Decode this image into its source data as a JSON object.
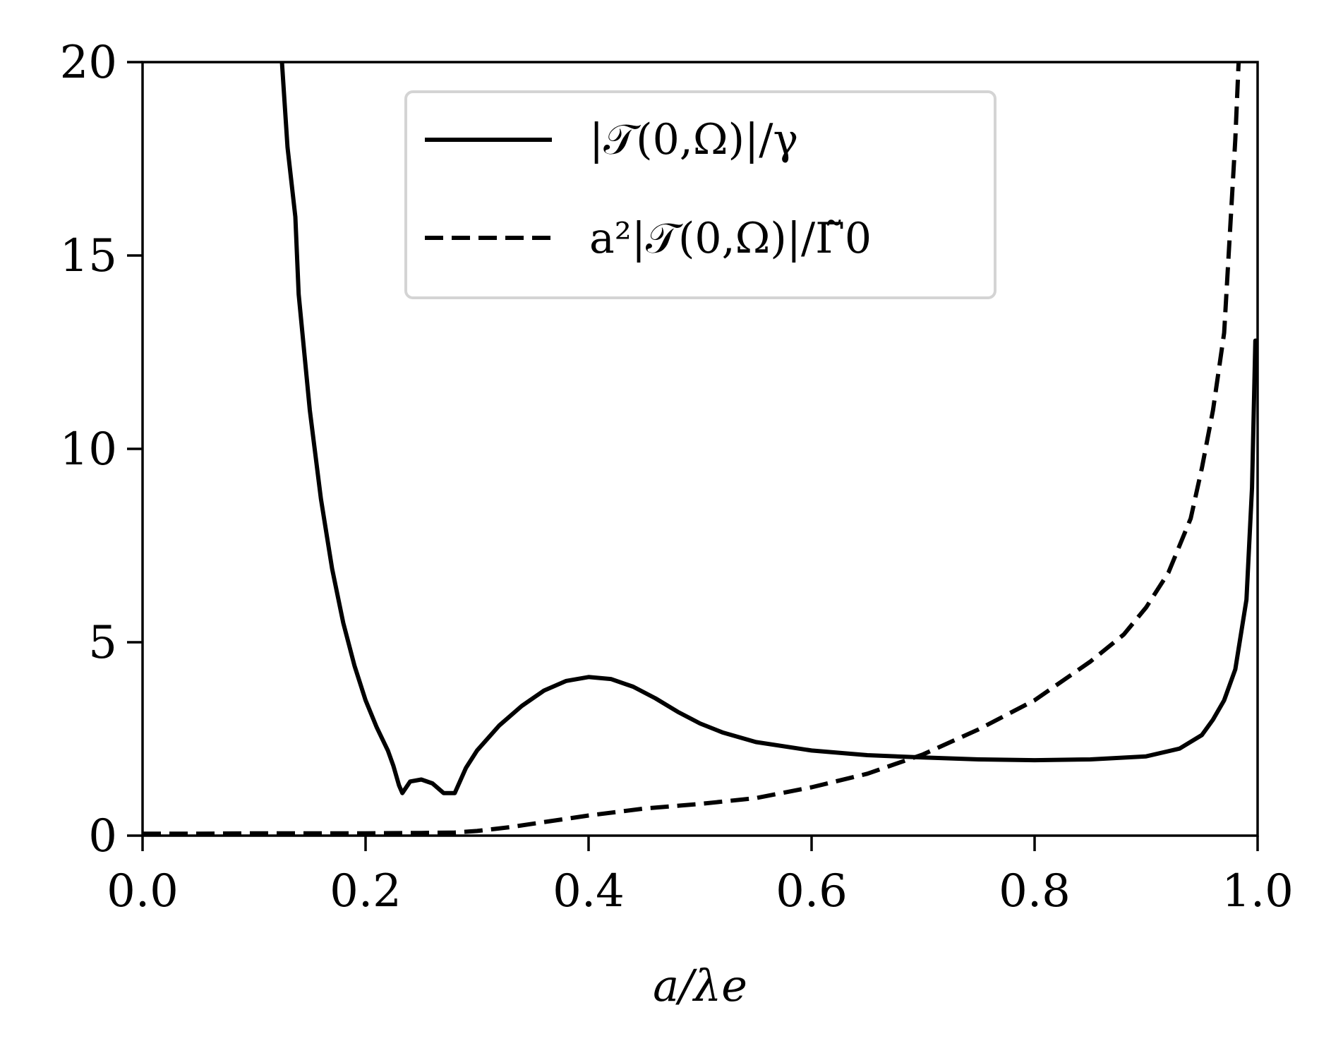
{
  "chart_data": {
    "type": "line",
    "xlabel": "a/λe",
    "ylabel": "",
    "xlim": [
      0.0,
      1.0
    ],
    "ylim": [
      0,
      20
    ],
    "x_ticks": [
      0.0,
      0.2,
      0.4,
      0.6,
      0.8,
      1.0
    ],
    "x_tick_labels": [
      "0.0",
      "0.2",
      "0.4",
      "0.6",
      "0.8",
      "1.0"
    ],
    "y_ticks": [
      0,
      5,
      10,
      15,
      20
    ],
    "y_tick_labels": [
      "0",
      "5",
      "10",
      "15",
      "20"
    ],
    "grid": false,
    "legend_position": "top-center",
    "series": [
      {
        "name": "|𝒯(0,Ω)|/γ",
        "style": "solid",
        "color": "#000000",
        "points": [
          [
            0.125,
            20.0
          ],
          [
            0.13,
            17.8
          ],
          [
            0.137,
            16.0
          ],
          [
            0.14,
            14.0
          ],
          [
            0.15,
            11.0
          ],
          [
            0.16,
            8.7
          ],
          [
            0.17,
            6.9
          ],
          [
            0.18,
            5.5
          ],
          [
            0.19,
            4.4
          ],
          [
            0.2,
            3.5
          ],
          [
            0.21,
            2.8
          ],
          [
            0.22,
            2.2
          ],
          [
            0.225,
            1.8
          ],
          [
            0.23,
            1.3
          ],
          [
            0.233,
            1.1
          ],
          [
            0.24,
            1.4
          ],
          [
            0.25,
            1.45
          ],
          [
            0.26,
            1.35
          ],
          [
            0.27,
            1.1
          ],
          [
            0.28,
            1.1
          ],
          [
            0.29,
            1.75
          ],
          [
            0.3,
            2.2
          ],
          [
            0.32,
            2.85
          ],
          [
            0.34,
            3.35
          ],
          [
            0.36,
            3.75
          ],
          [
            0.38,
            4.0
          ],
          [
            0.4,
            4.1
          ],
          [
            0.42,
            4.05
          ],
          [
            0.44,
            3.85
          ],
          [
            0.46,
            3.55
          ],
          [
            0.48,
            3.2
          ],
          [
            0.5,
            2.9
          ],
          [
            0.52,
            2.67
          ],
          [
            0.55,
            2.42
          ],
          [
            0.6,
            2.2
          ],
          [
            0.65,
            2.08
          ],
          [
            0.7,
            2.02
          ],
          [
            0.75,
            1.97
          ],
          [
            0.8,
            1.95
          ],
          [
            0.85,
            1.97
          ],
          [
            0.9,
            2.05
          ],
          [
            0.93,
            2.25
          ],
          [
            0.95,
            2.6
          ],
          [
            0.96,
            3.0
          ],
          [
            0.97,
            3.5
          ],
          [
            0.98,
            4.3
          ],
          [
            0.99,
            6.1
          ],
          [
            0.995,
            9.0
          ],
          [
            0.998,
            12.8
          ],
          [
            1.0,
            12.8
          ]
        ]
      },
      {
        "name": "a²|𝒯(0,Ω)|/Γ̃0",
        "style": "dashed",
        "color": "#000000",
        "points": [
          [
            0.0,
            0.05
          ],
          [
            0.05,
            0.05
          ],
          [
            0.1,
            0.06
          ],
          [
            0.15,
            0.06
          ],
          [
            0.2,
            0.06
          ],
          [
            0.25,
            0.07
          ],
          [
            0.28,
            0.08
          ],
          [
            0.3,
            0.12
          ],
          [
            0.33,
            0.22
          ],
          [
            0.36,
            0.35
          ],
          [
            0.4,
            0.52
          ],
          [
            0.45,
            0.7
          ],
          [
            0.5,
            0.82
          ],
          [
            0.55,
            0.97
          ],
          [
            0.6,
            1.25
          ],
          [
            0.65,
            1.6
          ],
          [
            0.7,
            2.1
          ],
          [
            0.75,
            2.75
          ],
          [
            0.8,
            3.5
          ],
          [
            0.85,
            4.5
          ],
          [
            0.88,
            5.2
          ],
          [
            0.9,
            5.9
          ],
          [
            0.92,
            6.8
          ],
          [
            0.94,
            8.2
          ],
          [
            0.95,
            9.5
          ],
          [
            0.96,
            11.0
          ],
          [
            0.97,
            13.0
          ],
          [
            0.975,
            15.5
          ],
          [
            0.98,
            18.0
          ],
          [
            0.983,
            20.0
          ]
        ]
      }
    ]
  }
}
